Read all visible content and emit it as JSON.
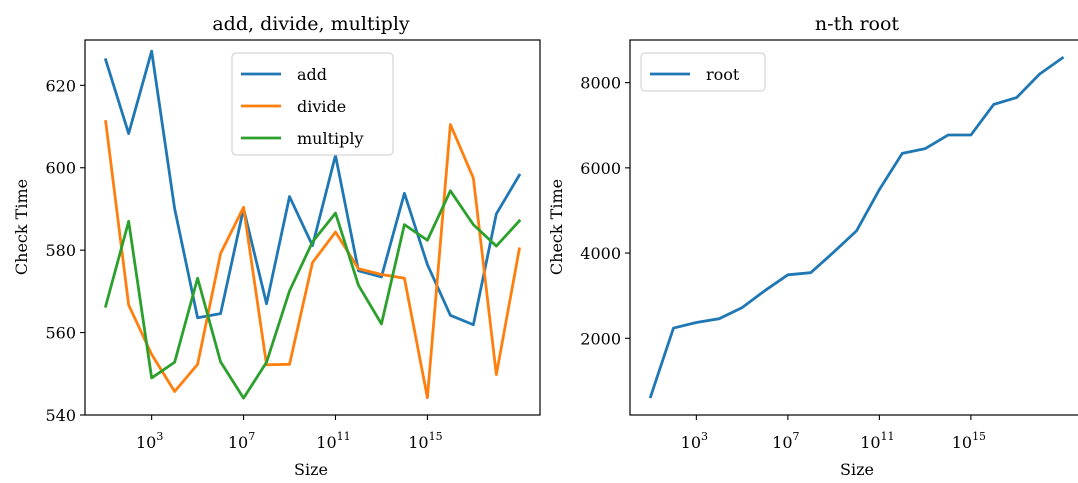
{
  "chart_data": [
    {
      "type": "line",
      "title": "add, divide, multiply",
      "xlabel": "Size",
      "ylabel": "Check Time",
      "x_scale": "log",
      "x": [
        10,
        100,
        1000,
        10000,
        100000,
        1000000,
        10000000,
        100000000,
        1000000000,
        10000000000,
        100000000000,
        1000000000000,
        10000000000000,
        100000000000000,
        1000000000000000,
        10000000000000000,
        100000000000000000,
        1000000000000000000,
        10000000000000000000
      ],
      "x_ticks": [
        {
          "base": "10",
          "exp": "3",
          "value": 1000
        },
        {
          "base": "10",
          "exp": "7",
          "value": 10000000
        },
        {
          "base": "10",
          "exp": "11",
          "value": 100000000000
        },
        {
          "base": "10",
          "exp": "15",
          "value": 1000000000000000
        }
      ],
      "y_ticks": [
        "540",
        "560",
        "580",
        "600",
        "620"
      ],
      "ylim": [
        540,
        631
      ],
      "legend": "upper center",
      "series": [
        {
          "name": "add",
          "color": "#1f77b4",
          "values": [
            626.2,
            608.3,
            628.3,
            590.1,
            563.6,
            564.6,
            590.1,
            567.0,
            593.0,
            581.1,
            603.0,
            575.0,
            573.5,
            593.8,
            576.5,
            564.2,
            561.9,
            588.8,
            598.2
          ]
        },
        {
          "name": "divide",
          "color": "#ff7f0e",
          "values": [
            611.2,
            566.7,
            554.7,
            545.7,
            552.3,
            579.2,
            590.4,
            552.2,
            552.3,
            577.0,
            584.4,
            575.5,
            574.1,
            573.2,
            544.2,
            610.5,
            597.5,
            549.8,
            580.3
          ]
        },
        {
          "name": "multiply",
          "color": "#2ca02c",
          "values": [
            566.4,
            587.0,
            549.0,
            552.8,
            573.2,
            552.9,
            544.1,
            552.8,
            570.1,
            582.0,
            589.0,
            571.5,
            562.1,
            586.2,
            582.4,
            594.4,
            586.2,
            581.0,
            587.1
          ]
        }
      ]
    },
    {
      "type": "line",
      "title": "n-th root",
      "xlabel": "Size",
      "ylabel": "Check Time",
      "x_scale": "log",
      "x": [
        10,
        100,
        1000,
        10000,
        100000,
        1000000,
        10000000,
        100000000,
        1000000000,
        10000000000,
        100000000000,
        1000000000000,
        10000000000000,
        100000000000000,
        1000000000000000,
        10000000000000000,
        100000000000000000,
        1000000000000000000,
        10000000000000000000
      ],
      "x_ticks": [
        {
          "base": "10",
          "exp": "3",
          "value": 1000
        },
        {
          "base": "10",
          "exp": "7",
          "value": 10000000
        },
        {
          "base": "10",
          "exp": "11",
          "value": 100000000000
        },
        {
          "base": "10",
          "exp": "15",
          "value": 1000000000000000
        }
      ],
      "y_ticks": [
        "2000",
        "4000",
        "6000",
        "8000"
      ],
      "ylim": [
        200,
        9000
      ],
      "legend": "upper left",
      "series": [
        {
          "name": "root",
          "color": "#1f77b4",
          "values": [
            630,
            2240,
            2370,
            2460,
            2720,
            3120,
            3490,
            3540,
            4020,
            4520,
            5490,
            6340,
            6450,
            6770,
            6770,
            7490,
            7650,
            8200,
            8580
          ]
        }
      ]
    }
  ]
}
